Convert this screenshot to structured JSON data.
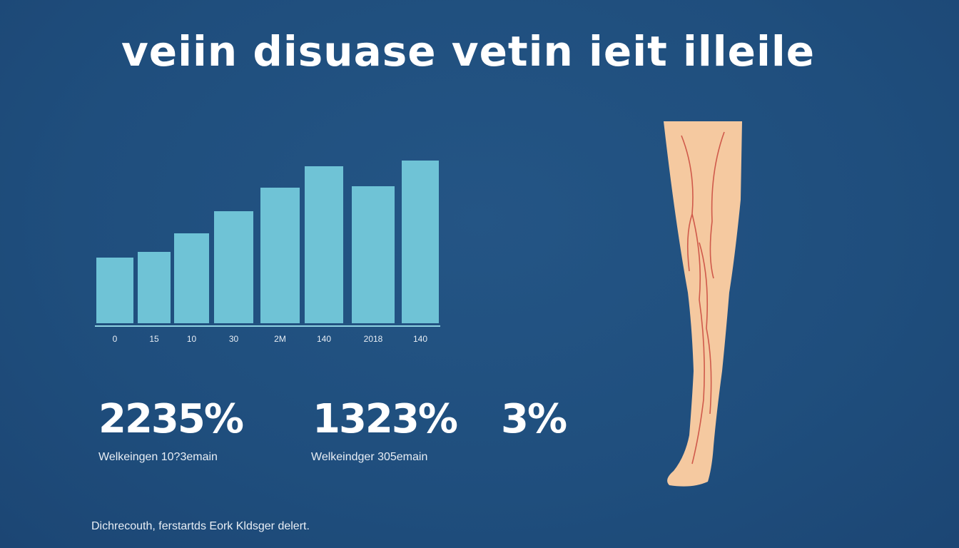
{
  "title": "veiin disuase vetin ieit illeile",
  "chart_data": {
    "type": "bar",
    "categories": [
      "0",
      "15",
      "10",
      "30",
      "2M",
      "140",
      "2018",
      "140"
    ],
    "values": [
      92,
      100,
      126,
      157,
      190,
      220,
      192,
      228
    ],
    "bar_color": "#6fc3d6",
    "grid": false,
    "title": "",
    "xlabel": "",
    "ylabel": ""
  },
  "stats": [
    {
      "value": "2235%",
      "label": "Welkeingen 10?3emain"
    },
    {
      "value": "1323%",
      "label": "Welkeindger 305emain"
    },
    {
      "value": "3%",
      "label": ""
    }
  ],
  "footer": "Dichrecouth, ferstartds Eork Kldsger delert.",
  "colors": {
    "background": "#1f4f7f",
    "bar": "#6fc3d6",
    "skin": "#f5c9a0",
    "vein": "#c9463c"
  }
}
